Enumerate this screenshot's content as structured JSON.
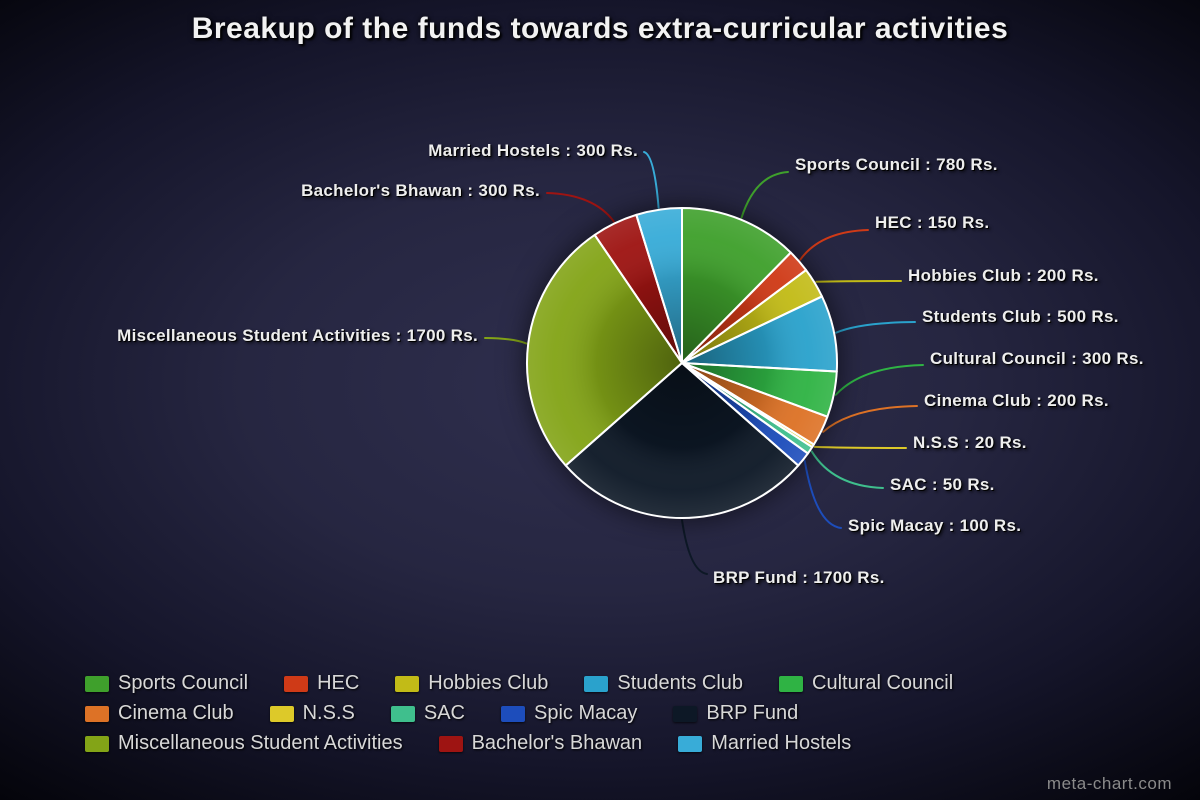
{
  "watermark": "meta-chart.com",
  "chart_data": {
    "type": "pie",
    "title": "Breakup of the funds towards extra-curricular activities",
    "unit": "Rs.",
    "legend_position": "bottom",
    "start_angle_deg": 0,
    "direction": "clockwise",
    "labels": [
      "Sports Council",
      "HEC",
      "Hobbies Club",
      "Students Club",
      "Cultural Council",
      "Cinema Club",
      "N.S.S",
      "SAC",
      "Spic Macay",
      "BRP Fund",
      "Miscellaneous Student Activities",
      "Bachelor's Bhawan",
      "Married Hostels"
    ],
    "values": [
      780,
      150,
      200,
      500,
      300,
      200,
      20,
      50,
      100,
      1700,
      1700,
      300,
      300
    ],
    "colors": [
      "#3fa02c",
      "#cf3a17",
      "#c2bb17",
      "#2aa2cc",
      "#2fb344",
      "#dd7226",
      "#ddc929",
      "#3fbf8d",
      "#1d4dbb",
      "#0d1826",
      "#83a417",
      "#9e1412",
      "#38acd8"
    ]
  }
}
